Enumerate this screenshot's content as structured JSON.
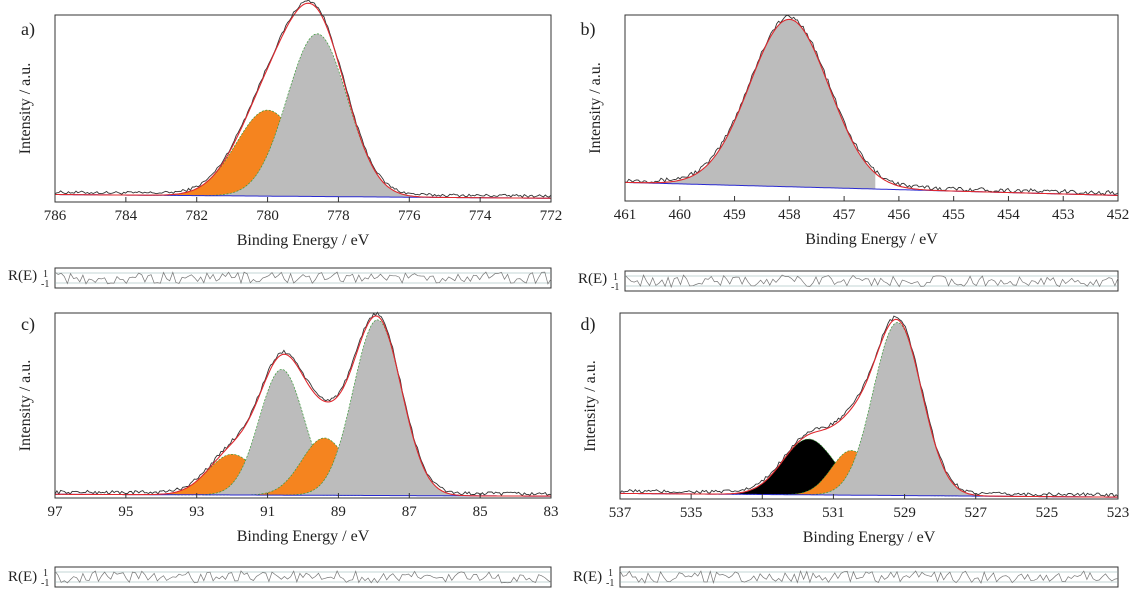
{
  "figure": {
    "resid_label": "R(E)",
    "resid_top": "1",
    "resid_bottom": "-1"
  },
  "chart_data": [
    {
      "panel": "a)",
      "type": "area",
      "xlabel": "Binding Energy / eV",
      "ylabel": "Intensity / a.u.",
      "xlim": [
        786,
        772
      ],
      "ylim": [
        0,
        1
      ],
      "xticks": [
        786,
        784,
        782,
        780,
        778,
        776,
        774,
        772
      ],
      "xtick_labels": [
        "786",
        "784",
        "782",
        "780",
        "778",
        "776",
        "774",
        "772"
      ],
      "yticks_shown": false,
      "background": {
        "start": 0.04,
        "end": 0.02
      },
      "components": [
        {
          "center": 780.0,
          "height": 0.46,
          "fwhm": 2.1,
          "fill": "#f5841f"
        },
        {
          "center": 778.6,
          "height": 0.87,
          "fwhm": 2.0,
          "fill": "#bcbcbc"
        }
      ],
      "noise": 0.008
    },
    {
      "panel": "b)",
      "type": "area",
      "xlabel": "Binding Energy / eV",
      "ylabel": "Intensity / a.u.",
      "xlim": [
        461,
        452
      ],
      "ylim": [
        0,
        1
      ],
      "xticks": [
        461,
        460,
        459,
        458,
        457,
        456,
        455,
        454,
        453,
        452
      ],
      "xtick_labels": [
        "461",
        "460",
        "459",
        "458",
        "457",
        "456",
        "455",
        "454",
        "453",
        "452"
      ],
      "yticks_shown": false,
      "background": {
        "start": 0.1,
        "end": 0.03
      },
      "components": [
        {
          "center": 458.0,
          "height": 0.9,
          "fwhm": 1.7,
          "fill": "#bcbcbc",
          "clipHigh": 456.4
        }
      ],
      "noise": 0.012
    },
    {
      "panel": "c)",
      "type": "area",
      "xlabel": "Binding Energy / eV",
      "ylabel": "Intensity / a.u.",
      "xlim": [
        97,
        83
      ],
      "ylim": [
        0,
        1
      ],
      "xticks": [
        97,
        95,
        93,
        91,
        89,
        87,
        85,
        83
      ],
      "xtick_labels": [
        "97",
        "95",
        "93",
        "91",
        "89",
        "87",
        "85",
        "83"
      ],
      "yticks_shown": false,
      "background": {
        "start": 0.02,
        "end": 0.01
      },
      "components": [
        {
          "center": 92.0,
          "height": 0.22,
          "fwhm": 1.6,
          "fill": "#f5841f"
        },
        {
          "center": 90.6,
          "height": 0.68,
          "fwhm": 1.5,
          "fill": "#bcbcbc"
        },
        {
          "center": 89.4,
          "height": 0.31,
          "fwhm": 1.5,
          "fill": "#f5841f"
        },
        {
          "center": 87.9,
          "height": 0.95,
          "fwhm": 1.6,
          "fill": "#bcbcbc"
        }
      ],
      "noise": 0.01
    },
    {
      "panel": "d)",
      "type": "area",
      "xlabel": "Binding Energy / eV",
      "ylabel": "Intensity / a.u.",
      "xlim": [
        537,
        523
      ],
      "ylim": [
        0,
        1
      ],
      "xticks": [
        537,
        535,
        533,
        531,
        529,
        527,
        525,
        523
      ],
      "xtick_labels": [
        "537",
        "535",
        "533",
        "531",
        "529",
        "527",
        "525",
        "523"
      ],
      "yticks_shown": false,
      "background": {
        "start": 0.03,
        "end": 0.01
      },
      "components": [
        {
          "center": 531.7,
          "height": 0.3,
          "fwhm": 1.7,
          "fill": "#000000"
        },
        {
          "center": 530.5,
          "height": 0.24,
          "fwhm": 1.3,
          "fill": "#f5841f"
        },
        {
          "center": 529.2,
          "height": 0.93,
          "fwhm": 1.6,
          "fill": "#bcbcbc"
        }
      ],
      "noise": 0.01
    }
  ]
}
